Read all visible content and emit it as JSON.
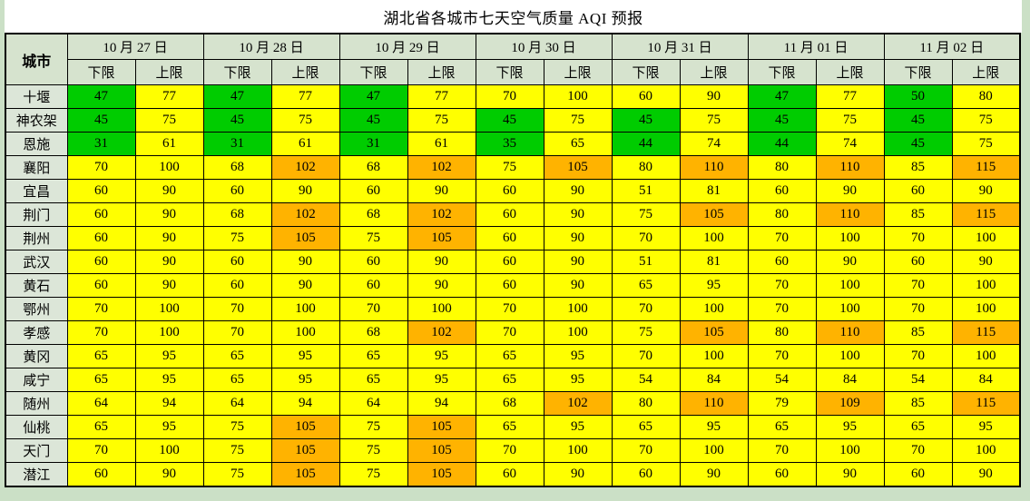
{
  "chart_data": {
    "type": "table",
    "title": "湖北省各城市七天空气质量 AQI 预报",
    "corner_label": "城市",
    "columns": [
      "10 月 27 日",
      "10 月 28 日",
      "10 月 29 日",
      "10 月 30 日",
      "10 月 31 日",
      "11 月 01 日",
      "11 月 02 日"
    ],
    "sub_headers": [
      "下限",
      "上限"
    ],
    "thresholds": {
      "good_max": 50,
      "moderate_max": 100
    },
    "palette": {
      "good": "#00CC00",
      "moderate": "#FFFF00",
      "light_pollution": "#FFB300",
      "header_bg": "#D6E3CE",
      "city_bg": "#DCE6D8",
      "page_bg": "#CBE0C6",
      "border": "#000000"
    },
    "rows": [
      {
        "city": "十堰",
        "values": [
          47,
          77,
          47,
          77,
          47,
          77,
          70,
          100,
          60,
          90,
          47,
          77,
          50,
          80
        ]
      },
      {
        "city": "神农架",
        "values": [
          45,
          75,
          45,
          75,
          45,
          75,
          45,
          75,
          45,
          75,
          45,
          75,
          45,
          75
        ]
      },
      {
        "city": "恩施",
        "values": [
          31,
          61,
          31,
          61,
          31,
          61,
          35,
          65,
          44,
          74,
          44,
          74,
          45,
          75
        ]
      },
      {
        "city": "襄阳",
        "values": [
          70,
          100,
          68,
          102,
          68,
          102,
          75,
          105,
          80,
          110,
          80,
          110,
          85,
          115
        ]
      },
      {
        "city": "宜昌",
        "values": [
          60,
          90,
          60,
          90,
          60,
          90,
          60,
          90,
          51,
          81,
          60,
          90,
          60,
          90
        ]
      },
      {
        "city": "荆门",
        "values": [
          60,
          90,
          68,
          102,
          68,
          102,
          60,
          90,
          75,
          105,
          80,
          110,
          85,
          115
        ]
      },
      {
        "city": "荆州",
        "values": [
          60,
          90,
          75,
          105,
          75,
          105,
          60,
          90,
          70,
          100,
          70,
          100,
          70,
          100
        ]
      },
      {
        "city": "武汉",
        "values": [
          60,
          90,
          60,
          90,
          60,
          90,
          60,
          90,
          51,
          81,
          60,
          90,
          60,
          90
        ]
      },
      {
        "city": "黄石",
        "values": [
          60,
          90,
          60,
          90,
          60,
          90,
          60,
          90,
          65,
          95,
          70,
          100,
          70,
          100
        ]
      },
      {
        "city": "鄂州",
        "values": [
          70,
          100,
          70,
          100,
          70,
          100,
          70,
          100,
          70,
          100,
          70,
          100,
          70,
          100
        ]
      },
      {
        "city": "孝感",
        "values": [
          70,
          100,
          70,
          100,
          68,
          102,
          70,
          100,
          75,
          105,
          80,
          110,
          85,
          115
        ]
      },
      {
        "city": "黄冈",
        "values": [
          65,
          95,
          65,
          95,
          65,
          95,
          65,
          95,
          70,
          100,
          70,
          100,
          70,
          100
        ]
      },
      {
        "city": "咸宁",
        "values": [
          65,
          95,
          65,
          95,
          65,
          95,
          65,
          95,
          54,
          84,
          54,
          84,
          54,
          84
        ]
      },
      {
        "city": "随州",
        "values": [
          64,
          94,
          64,
          94,
          64,
          94,
          68,
          102,
          80,
          110,
          79,
          109,
          85,
          115
        ]
      },
      {
        "city": "仙桃",
        "values": [
          65,
          95,
          75,
          105,
          75,
          105,
          65,
          95,
          65,
          95,
          65,
          95,
          65,
          95
        ]
      },
      {
        "city": "天门",
        "values": [
          70,
          100,
          75,
          105,
          75,
          105,
          70,
          100,
          70,
          100,
          70,
          100,
          70,
          100
        ]
      },
      {
        "city": "潜江",
        "values": [
          60,
          90,
          75,
          105,
          75,
          105,
          60,
          90,
          60,
          90,
          60,
          90,
          60,
          90
        ]
      }
    ]
  }
}
